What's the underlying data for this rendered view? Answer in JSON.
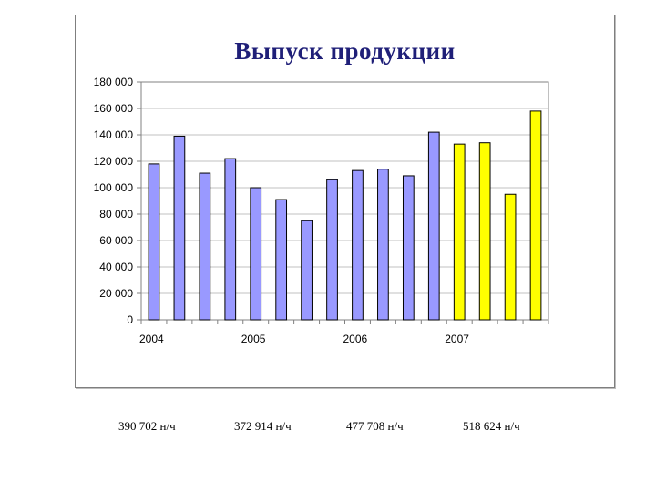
{
  "colors": {
    "bar_default": "#9999ff",
    "bar_highlight": "#ffff00",
    "bar_stroke": "#000000",
    "axis": "#808080",
    "grid": "#c0c0c0"
  },
  "chart_data": {
    "type": "bar",
    "title": "Выпуск продукции",
    "xlabel": "",
    "ylabel": "",
    "ylim": [
      0,
      180000
    ],
    "yticks": [
      0,
      20000,
      40000,
      60000,
      80000,
      100000,
      120000,
      140000,
      160000,
      180000
    ],
    "ytick_labels": [
      "0",
      "20 000",
      "40 000",
      "60 000",
      "80 000",
      "100 000",
      "120 000",
      "140 000",
      "160 000",
      "180 000"
    ],
    "x_group_labels": [
      "2004",
      "2005",
      "2006",
      "2007"
    ],
    "periods_per_group": 4,
    "values": [
      118000,
      139000,
      111000,
      122000,
      100000,
      91000,
      75000,
      106000,
      113000,
      114000,
      109000,
      142000,
      133000,
      134000,
      95000,
      158000
    ],
    "highlighted_group": "2007",
    "grid": "horizontal",
    "legend": "none"
  },
  "totals": [
    "390 702 н/ч",
    "372 914 н/ч",
    "477 708 н/ч",
    "518 624 н/ч"
  ]
}
